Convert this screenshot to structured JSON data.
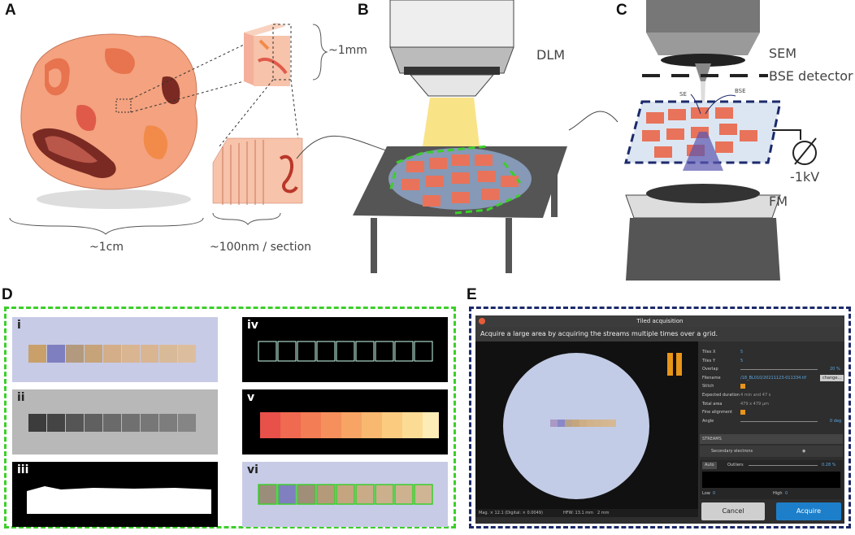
{
  "panels": {
    "a": {
      "letter": "A",
      "scale_cm": "~1cm",
      "scale_mm": "~1mm",
      "scale_section": "~100nm / section"
    },
    "b": {
      "letter": "B",
      "microscope": "DLM"
    },
    "c": {
      "letter": "C",
      "microscope_top": "SEM",
      "detector": "BSE detector",
      "se": "SE",
      "bse": "BSE",
      "voltage": "-1kV",
      "microscope_bottom": "FM"
    },
    "d": {
      "letter": "D",
      "sub": [
        "i",
        "ii",
        "iii",
        "iv",
        "v",
        "vi"
      ]
    },
    "e": {
      "letter": "E"
    }
  },
  "window": {
    "title": "Tiled acquisition",
    "description": "Acquire a large area by acquiring the streams multiple times over a grid.",
    "status_left": "Mag. × 12.1 (Digital: × 0.0049)",
    "status_hfw": "HFW: 13.1 mm",
    "status_scale": "2 mm",
    "settings": [
      {
        "key": "Tiles X",
        "value": "5"
      },
      {
        "key": "Tiles Y",
        "value": "5"
      },
      {
        "key": "Overlap",
        "value": "20 %"
      },
      {
        "key": "Filename",
        "value": "/18_BL010/20211123-011334.tif"
      },
      {
        "key": "Stitch",
        "value": ""
      },
      {
        "key": "Expected duration",
        "value": "4 min and 47 s"
      },
      {
        "key": "Total area",
        "value": "479 x 479 µm"
      },
      {
        "key": "Fine alignment",
        "value": ""
      },
      {
        "key": "Angle",
        "value": "0 deg"
      }
    ],
    "change_label": "change...",
    "streams_label": "STREAMS",
    "stream_name": "Secondary electrons",
    "auto_label": "Auto",
    "outliers_label": "Outliers",
    "outliers_value": "0.28 %",
    "low_label": "Low",
    "low_value": "0",
    "high_label": "High",
    "high_value": "0",
    "cancel_label": "Cancel",
    "acquire_label": "Acquire"
  },
  "colors": {
    "green_box": "#3ccf2a",
    "navy_box": "#1c2a6b",
    "tissue": "#f4a27f",
    "accent_blue": "#1d7fc9"
  }
}
